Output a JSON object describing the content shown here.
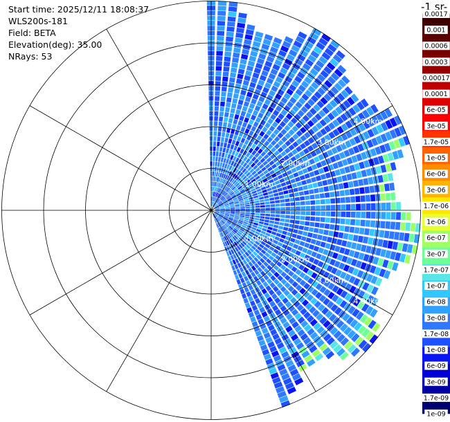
{
  "info": {
    "start_time": "Start time: 2025/12/11 18:08:37",
    "instrument": "WLS200s-181",
    "field": "Field: BETA",
    "elevation": "Elevation(deg): 35.00",
    "nrays": "NRays: 53"
  },
  "colorbar": {
    "units_label": "-1 sr-",
    "colors": [
      "#00006e",
      "#0000a0",
      "#0000d2",
      "#0a14f0",
      "#1e50ff",
      "#2d78ff",
      "#32a0ff",
      "#32c8ff",
      "#5ae6e6",
      "#6eff96",
      "#a0ff64",
      "#e6ff32",
      "#ffe600",
      "#ffb400",
      "#ff8c00",
      "#ff6400",
      "#ff3200",
      "#ff0000",
      "#dc0000",
      "#be0000",
      "#960000",
      "#780000",
      "#5a0000",
      "#3c0000"
    ],
    "labels": [
      "1e-09",
      "1.7e-09",
      "3e-09",
      "6e-09",
      "1e-08",
      "1.7e-08",
      "3e-08",
      "6e-08",
      "1e-07",
      "1.7e-07",
      "3e-07",
      "6e-07",
      "1e-06",
      "1.7e-06",
      "3e-06",
      "6e-06",
      "1e-05",
      "1.7e-05",
      "3e-05",
      "6e-05",
      "0.0001",
      "0.00017",
      "0.0003",
      "0.0006",
      "0.001",
      "0.0017"
    ]
  },
  "chart_data": {
    "type": "ppi_polar_scan",
    "field": "BETA",
    "elevation_deg": 35.0,
    "nrays": 53,
    "azimuth_start_deg": 0,
    "azimuth_end_deg": 159,
    "max_range_km": 5.0,
    "range_rings_km": [
      1.0,
      2.0,
      3.0,
      4.0,
      5.0
    ],
    "ring_labels": [
      "1.00km",
      "2.00km",
      "3.00km",
      "4.00km",
      "5.00km"
    ],
    "radial_spokes_deg": [
      0,
      30,
      60,
      90,
      120,
      150,
      180,
      210,
      240,
      270,
      300,
      330
    ],
    "dominant_value_range": [
      "6e-09",
      "3e-08"
    ],
    "near_edge_values": [
      "6e-07",
      "1.7e-06"
    ],
    "log_scale": true
  }
}
